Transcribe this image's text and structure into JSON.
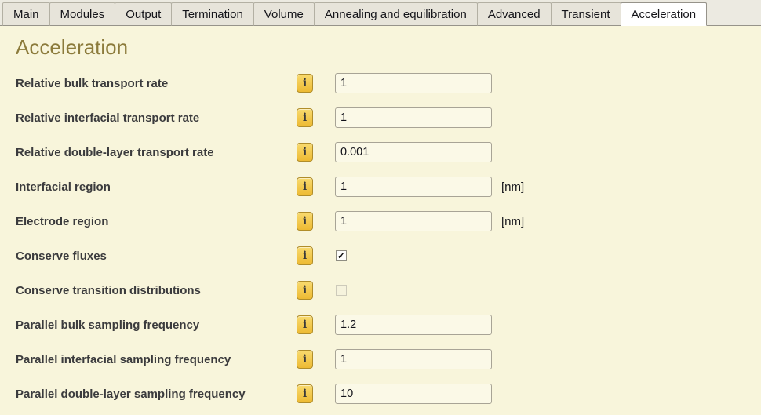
{
  "tabs": {
    "items": [
      "Main",
      "Modules",
      "Output",
      "Termination",
      "Volume",
      "Annealing and equilibration",
      "Advanced",
      "Transient",
      "Acceleration"
    ],
    "active": "Acceleration"
  },
  "page": {
    "heading": "Acceleration"
  },
  "form": {
    "info_icon_glyph": "i",
    "check_glyph": "✓",
    "rows": [
      {
        "label": "Relative bulk transport rate",
        "control": "input",
        "value": "1"
      },
      {
        "label": "Relative interfacial transport rate",
        "control": "input",
        "value": "1"
      },
      {
        "label": "Relative double-layer transport rate",
        "control": "input",
        "value": "0.001"
      },
      {
        "label": "Interfacial region",
        "control": "input",
        "value": "1",
        "unit": "[nm]"
      },
      {
        "label": "Electrode region",
        "control": "input",
        "value": "1",
        "unit": "[nm]"
      },
      {
        "label": "Conserve fluxes",
        "control": "checkbox",
        "checked": true
      },
      {
        "label": "Conserve transition distributions",
        "control": "checkbox",
        "checked": false
      },
      {
        "label": "Parallel bulk sampling frequency",
        "control": "input",
        "value": "1.2"
      },
      {
        "label": "Parallel interfacial sampling frequency",
        "control": "input",
        "value": "1"
      },
      {
        "label": "Parallel double-layer sampling frequency",
        "control": "input",
        "value": "10"
      }
    ]
  },
  "colors": {
    "content_bg": "#f8f5db",
    "tabbar_bg": "#eceae1",
    "active_tab_bg": "#ffffff",
    "heading": "#8c7b3c",
    "accent_gold": "#edba33"
  }
}
